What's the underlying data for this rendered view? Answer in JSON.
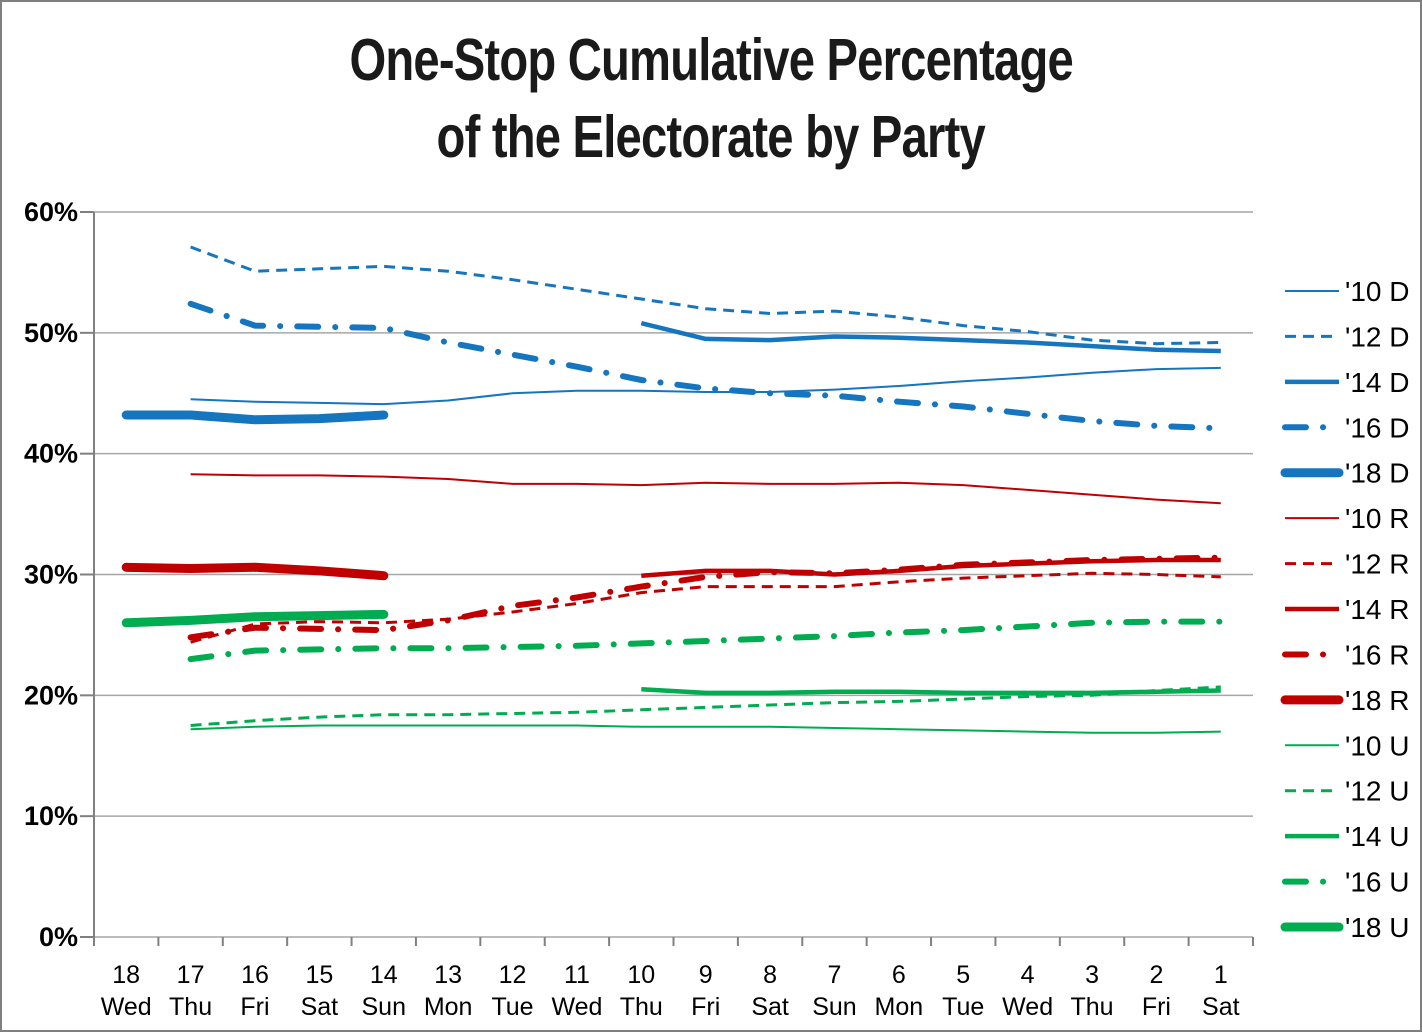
{
  "title": {
    "line1": "One-Stop Cumulative Percentage",
    "line2": "of the Electorate by Party"
  },
  "chart_data": {
    "type": "line",
    "title": "One-Stop Cumulative Percentage of the Electorate by Party",
    "xlabel": "",
    "ylabel": "",
    "grid": true,
    "legend_position": "right",
    "ylim": [
      0,
      60
    ],
    "yticks": [
      0,
      10,
      20,
      30,
      40,
      50,
      60
    ],
    "ytick_labels": [
      "0%",
      "10%",
      "20%",
      "30%",
      "40%",
      "50%",
      "60%"
    ],
    "categories": [
      {
        "day": "18",
        "weekday": "Wed"
      },
      {
        "day": "17",
        "weekday": "Thu"
      },
      {
        "day": "16",
        "weekday": "Fri"
      },
      {
        "day": "15",
        "weekday": "Sat"
      },
      {
        "day": "14",
        "weekday": "Sun"
      },
      {
        "day": "13",
        "weekday": "Mon"
      },
      {
        "day": "12",
        "weekday": "Tue"
      },
      {
        "day": "11",
        "weekday": "Wed"
      },
      {
        "day": "10",
        "weekday": "Thu"
      },
      {
        "day": "9",
        "weekday": "Fri"
      },
      {
        "day": "8",
        "weekday": "Sat"
      },
      {
        "day": "7",
        "weekday": "Sun"
      },
      {
        "day": "6",
        "weekday": "Mon"
      },
      {
        "day": "5",
        "weekday": "Tue"
      },
      {
        "day": "4",
        "weekday": "Wed"
      },
      {
        "day": "3",
        "weekday": "Thu"
      },
      {
        "day": "2",
        "weekday": "Fri"
      },
      {
        "day": "1",
        "weekday": "Sat"
      }
    ],
    "colors": {
      "democrat": "#1575BE",
      "republican": "#C00000",
      "unaffiliated": "#00AC50"
    },
    "series": [
      {
        "name": "'10 D",
        "color": "#1575BE",
        "style": "thin",
        "values": [
          null,
          44.5,
          44.3,
          44.2,
          44.1,
          44.4,
          45.0,
          45.2,
          45.2,
          45.1,
          45.1,
          45.3,
          45.6,
          46.0,
          46.3,
          46.7,
          47.0,
          47.1
        ]
      },
      {
        "name": "'12 D",
        "color": "#1575BE",
        "style": "dashed",
        "values": [
          null,
          57.1,
          55.1,
          55.3,
          55.5,
          55.1,
          54.4,
          53.6,
          52.8,
          52.0,
          51.6,
          51.8,
          51.3,
          50.6,
          50.1,
          49.4,
          49.1,
          49.2
        ]
      },
      {
        "name": "'14 D",
        "color": "#1575BE",
        "style": "medium",
        "values": [
          null,
          null,
          null,
          null,
          null,
          null,
          null,
          null,
          50.8,
          49.5,
          49.4,
          49.7,
          49.6,
          49.4,
          49.2,
          48.9,
          48.6,
          48.5
        ]
      },
      {
        "name": "'16 D",
        "color": "#1575BE",
        "style": "dashdot",
        "values": [
          null,
          52.4,
          50.6,
          50.5,
          50.4,
          49.2,
          48.2,
          47.2,
          46.1,
          45.4,
          45.0,
          44.8,
          44.3,
          43.9,
          43.3,
          42.7,
          42.3,
          42.1
        ]
      },
      {
        "name": "'18 D",
        "color": "#1575BE",
        "style": "thick",
        "values": [
          43.2,
          43.2,
          42.8,
          42.9,
          43.2,
          null,
          null,
          null,
          null,
          null,
          null,
          null,
          null,
          null,
          null,
          null,
          null,
          null
        ]
      },
      {
        "name": "'10 R",
        "color": "#C00000",
        "style": "thin",
        "values": [
          null,
          38.3,
          38.2,
          38.2,
          38.1,
          37.9,
          37.5,
          37.5,
          37.4,
          37.6,
          37.5,
          37.5,
          37.6,
          37.4,
          37.0,
          36.6,
          36.2,
          35.9
        ]
      },
      {
        "name": "'12 R",
        "color": "#C00000",
        "style": "dashed",
        "values": [
          null,
          24.4,
          25.9,
          26.1,
          26.0,
          26.3,
          26.9,
          27.6,
          28.5,
          29.0,
          29.0,
          29.0,
          29.4,
          29.7,
          29.9,
          30.1,
          30.0,
          29.8
        ]
      },
      {
        "name": "'14 R",
        "color": "#C00000",
        "style": "medium",
        "values": [
          null,
          null,
          null,
          null,
          null,
          null,
          null,
          null,
          29.9,
          30.3,
          30.3,
          30.0,
          30.3,
          30.7,
          30.9,
          31.1,
          31.2,
          31.2
        ]
      },
      {
        "name": "'16 R",
        "color": "#C00000",
        "style": "dashdot",
        "values": [
          null,
          24.8,
          25.6,
          25.5,
          25.4,
          26.2,
          27.4,
          28.1,
          29.0,
          29.8,
          30.2,
          30.1,
          30.4,
          30.8,
          31.0,
          31.2,
          31.3,
          31.4
        ]
      },
      {
        "name": "'18 R",
        "color": "#C00000",
        "style": "thick",
        "values": [
          30.6,
          30.5,
          30.6,
          30.3,
          29.9,
          null,
          null,
          null,
          null,
          null,
          null,
          null,
          null,
          null,
          null,
          null,
          null,
          null
        ]
      },
      {
        "name": "'10 U",
        "color": "#00AC50",
        "style": "thin",
        "values": [
          null,
          17.2,
          17.4,
          17.5,
          17.5,
          17.5,
          17.5,
          17.5,
          17.4,
          17.4,
          17.4,
          17.3,
          17.2,
          17.1,
          17.0,
          16.9,
          16.9,
          17.0
        ]
      },
      {
        "name": "'12 U",
        "color": "#00AC50",
        "style": "dashed",
        "values": [
          null,
          17.5,
          17.9,
          18.2,
          18.4,
          18.4,
          18.5,
          18.6,
          18.8,
          19.0,
          19.2,
          19.4,
          19.5,
          19.7,
          19.9,
          20.0,
          20.4,
          20.7
        ]
      },
      {
        "name": "'14 U",
        "color": "#00AC50",
        "style": "medium",
        "values": [
          null,
          null,
          null,
          null,
          null,
          null,
          null,
          null,
          20.5,
          20.2,
          20.2,
          20.3,
          20.3,
          20.2,
          20.2,
          20.2,
          20.3,
          20.4
        ]
      },
      {
        "name": "'16 U",
        "color": "#00AC50",
        "style": "dashdot",
        "values": [
          null,
          23.0,
          23.7,
          23.8,
          23.9,
          23.9,
          24.0,
          24.1,
          24.3,
          24.5,
          24.7,
          24.9,
          25.2,
          25.4,
          25.7,
          26.0,
          26.1,
          26.1
        ]
      },
      {
        "name": "'18 U",
        "color": "#00AC50",
        "style": "thick",
        "values": [
          26.0,
          26.2,
          26.5,
          26.6,
          26.7,
          null,
          null,
          null,
          null,
          null,
          null,
          null,
          null,
          null,
          null,
          null,
          null,
          null
        ]
      }
    ],
    "style_defs": {
      "thin": {
        "width": 2,
        "dash": null,
        "cap": "butt"
      },
      "dashed": {
        "width": 3,
        "dash": "11 7",
        "cap": "butt"
      },
      "medium": {
        "width": 4.5,
        "dash": null,
        "cap": "butt"
      },
      "dashdot": {
        "width": 6,
        "dash": "21 17 0.1 17",
        "cap": "round"
      },
      "thick": {
        "width": 9,
        "dash": null,
        "cap": "round"
      }
    },
    "axis_colors": {
      "gridline": "#A6A6A6",
      "axis": "#808080",
      "tick_label": "#000000"
    }
  }
}
